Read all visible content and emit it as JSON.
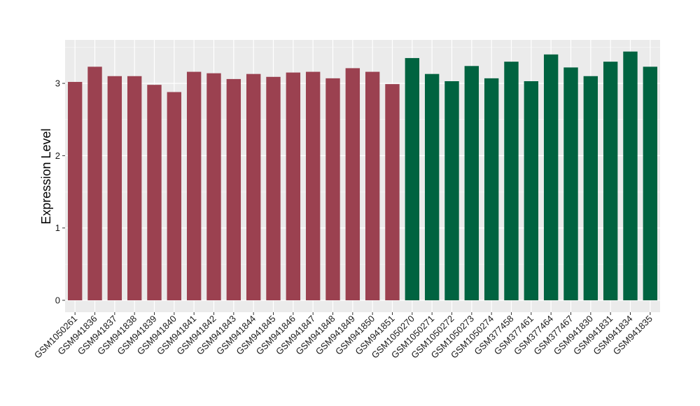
{
  "chart_data": {
    "type": "bar",
    "title": "",
    "xlabel": "",
    "ylabel": "Expression Level",
    "ylim": [
      0,
      3.6
    ],
    "yticks": [
      0,
      1,
      2,
      3
    ],
    "grid": true,
    "legend": "none",
    "background_color": "#ebebeb",
    "categories": [
      "GSM1050261",
      "GSM941836",
      "GSM941837",
      "GSM941838",
      "GSM941839",
      "GSM941840",
      "GSM941841",
      "GSM941842",
      "GSM941843",
      "GSM941844",
      "GSM941845",
      "GSM941846",
      "GSM941847",
      "GSM941848",
      "GSM941849",
      "GSM941850",
      "GSM941851",
      "GSM1050270",
      "GSM1050271",
      "GSM1050272",
      "GSM1050273",
      "GSM1050274",
      "GSM377458",
      "GSM377461",
      "GSM377464",
      "GSM377467",
      "GSM941830",
      "GSM941831",
      "GSM941834",
      "GSM941835"
    ],
    "values": [
      3.02,
      3.23,
      3.1,
      3.1,
      2.98,
      2.88,
      3.16,
      3.14,
      3.06,
      3.13,
      3.09,
      3.15,
      3.16,
      3.07,
      3.21,
      3.16,
      2.99,
      3.35,
      3.13,
      3.03,
      3.24,
      3.07,
      3.3,
      3.03,
      3.4,
      3.22,
      3.1,
      3.3,
      3.44,
      3.23
    ],
    "bar_colors": [
      "#9b4150",
      "#9b4150",
      "#9b4150",
      "#9b4150",
      "#9b4150",
      "#9b4150",
      "#9b4150",
      "#9b4150",
      "#9b4150",
      "#9b4150",
      "#9b4150",
      "#9b4150",
      "#9b4150",
      "#9b4150",
      "#9b4150",
      "#9b4150",
      "#9b4150",
      "#006340",
      "#006340",
      "#006340",
      "#006340",
      "#006340",
      "#006340",
      "#006340",
      "#006340",
      "#006340",
      "#006340",
      "#006340",
      "#006340",
      "#006340"
    ]
  }
}
